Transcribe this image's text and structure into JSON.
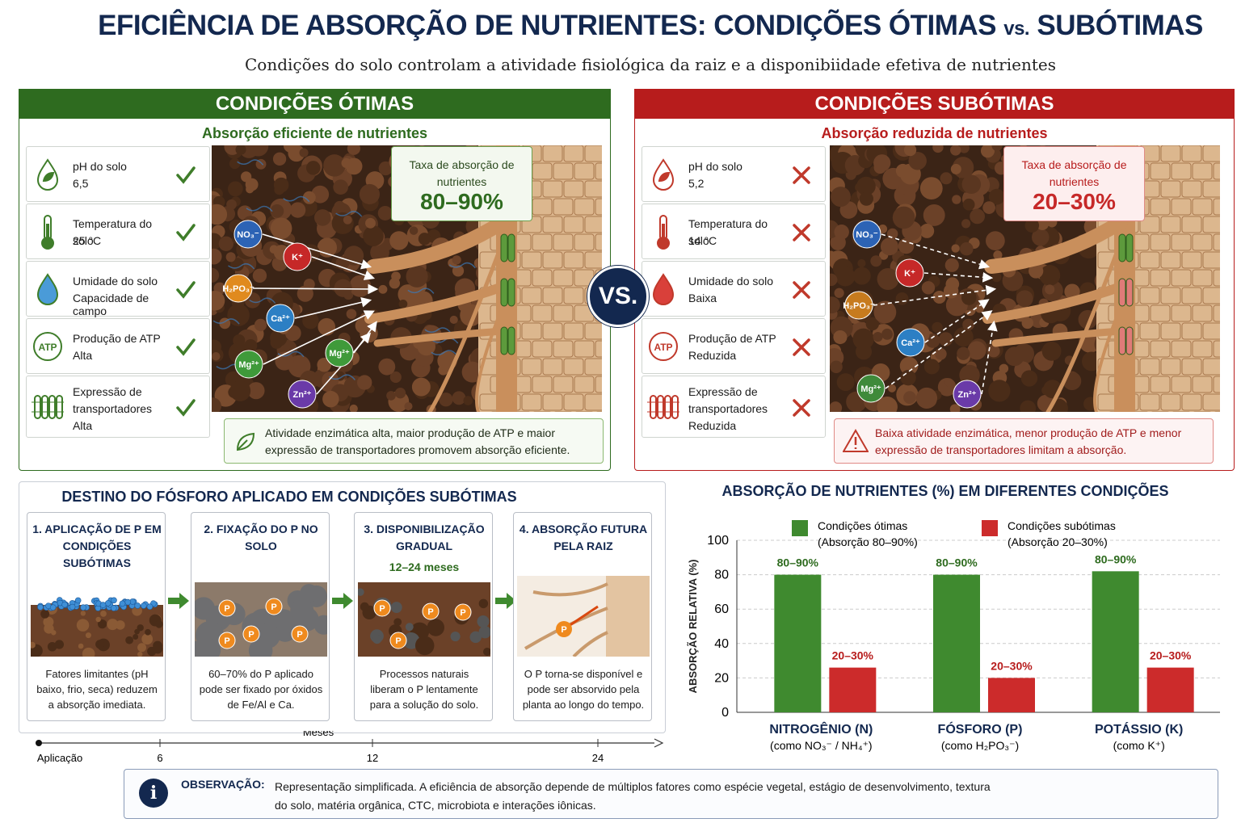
{
  "header": {
    "title": "EFICIÊNCIA DE ABSORÇÃO DE NUTRIENTES: CONDIÇÕES ÓTIMAS",
    "title_vs": "vs.",
    "title_end": "SUBÓTIMAS",
    "subtitle": "Condições do solo controlam a atividade fisiológica da raiz e a disponibiidade efetiva de nutrientes"
  },
  "vs_badge": "VS.",
  "icons": {
    "atp": "ATP",
    "info": "i",
    "phosphate": "P"
  },
  "optimal": {
    "heading": "CONDIÇÕES ÓTIMAS",
    "subheading": "Absorção eficiente de nutrientes",
    "factors": [
      {
        "label": "pH do solo",
        "value": "6,5"
      },
      {
        "label": "Temperatura do solo",
        "value": "25 °C"
      },
      {
        "label": "Umidade do solo",
        "value": "Capacidade de campo"
      },
      {
        "label": "Produção de ATP",
        "value": "Alta"
      },
      {
        "label": "Expressão de transportadores",
        "value": "Alta"
      }
    ],
    "rate_label": "Taxa de absorção de nutrientes",
    "rate": "80–90%",
    "ions": [
      "NO₃⁻",
      "K⁺",
      "H₂PO₃⁻",
      "Ca²⁺",
      "Mg²⁺",
      "Mg²⁺",
      "Zn²⁺"
    ],
    "note": "Atividade enzimática alta, maior produção de ATP e maior expressão de transportadores promovem absorção eficiente."
  },
  "suboptimal": {
    "heading": "CONDIÇÕES SUBÓTIMAS",
    "subheading": "Absorção reduzida de nutrientes",
    "factors": [
      {
        "label": "pH do solo",
        "value": "5,2"
      },
      {
        "label": "Temperatura do solo",
        "value": "14 °C"
      },
      {
        "label": "Umidade do solo",
        "value": "Baixa"
      },
      {
        "label": "Produção de ATP",
        "value": "Reduzida"
      },
      {
        "label": "Expressão de transportadores",
        "value": "Reduzida"
      }
    ],
    "rate_label": "Taxa de absorção de nutrientes",
    "rate": "20–30%",
    "ions": [
      "NO₃⁻",
      "K⁺",
      "H₂PO₃⁻",
      "Ca²⁺",
      "Mg²⁺",
      "Zn²⁺"
    ],
    "note": "Baixa atividade enzimática, menor produção de ATP e menor expressão de transportadores limitam a absorção."
  },
  "phosphorus_fate": {
    "title": "DESTINO DO FÓSFORO APLICADO EM CONDIÇÕES SUBÓTIMAS",
    "steps": [
      {
        "title": "1. APLICAÇÃO DE P EM CONDIÇÕES SUBÓTIMAS",
        "text": "Fatores limitantes (pH baixo, frio, seca) reduzem a absorção imediata."
      },
      {
        "title": "2. FIXAÇÃO DO P NO SOLO",
        "text": "60–70% do P aplicado pode ser fixado por óxidos de Fe/Al e Ca."
      },
      {
        "title": "3. DISPONIBILIZAÇÃO GRADUAL",
        "duration": "12–24 meses",
        "text": "Processos naturais liberam o P lentamente para a solução do solo."
      },
      {
        "title": "4. ABSORÇÃO FUTURA PELA RAIZ",
        "text": "O P torna-se disponível e pode ser absorvido pela planta ao longo do tempo."
      }
    ],
    "timeline": {
      "axis_label": "Meses",
      "ticks": [
        "Aplicação",
        "6",
        "12",
        "24"
      ]
    }
  },
  "chart_data": {
    "type": "bar",
    "title": "ABSORÇÃO DE NUTRIENTES (%) EM DIFERENTES CONDIÇÕES",
    "y_label": "ABSORÇÃO RELATIVA (%)",
    "categories": [
      "NITROGÊNIO (N)",
      "FÓSFORO (P)",
      "POTÁSSIO (K)"
    ],
    "category_notes": [
      "(como NO₃⁻ / NH₄⁺)",
      "(como H₂PO₃⁻)",
      "(como K⁺)"
    ],
    "series": [
      {
        "name": "Condições ótimas",
        "note": "(Absorção 80–90%)",
        "color": "#3f8a2f",
        "values": [
          80,
          80,
          82
        ],
        "value_labels": [
          "80–90%",
          "80–90%",
          "80–90%"
        ]
      },
      {
        "name": "Condições subótimas",
        "note": "(Absorção 20–30%)",
        "color": "#cc2b2b",
        "values": [
          26,
          20,
          26
        ],
        "value_labels": [
          "20–30%",
          "20–30%",
          "20–30%"
        ]
      }
    ],
    "ylim": [
      0,
      100
    ],
    "yticks": [
      0,
      20,
      40,
      60,
      80,
      100
    ],
    "grid": true
  },
  "note": {
    "label": "OBSERVAÇÃO:",
    "text": "Representação simplificada. A eficiência de absorção depende de múltiplos fatores como espécie vegetal, estágio de desenvolvimento, textura do solo, matéria orgânica, CTC, microbiota e interações iônicas."
  }
}
